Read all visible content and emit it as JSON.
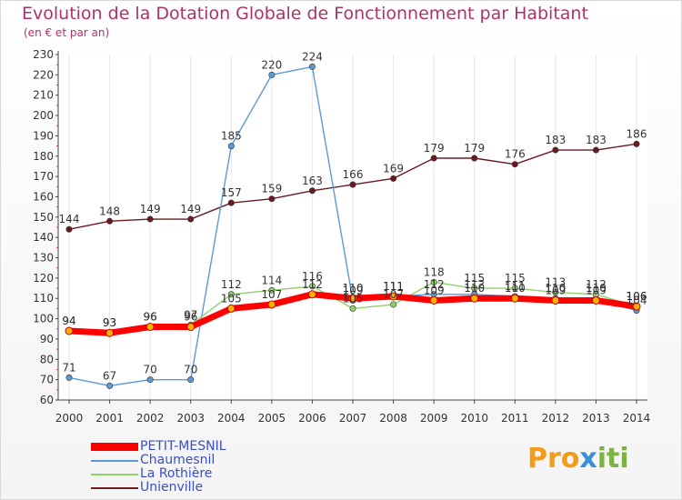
{
  "header": {
    "title": "Evolution de la Dotation Globale de Fonctionnement par Habitant",
    "subtitle": "(en € et par an)"
  },
  "logo": {
    "part1": "Pro",
    "part2": "x",
    "part3": "iti"
  },
  "chart_data": {
    "type": "line",
    "title": "Evolution de la Dotation Globale de Fonctionnement par Habitant",
    "subtitle": "(en € et par an)",
    "xlabel": "",
    "ylabel": "",
    "ylim": [
      60,
      230
    ],
    "yticks": [
      60,
      70,
      80,
      90,
      100,
      110,
      120,
      130,
      140,
      150,
      160,
      170,
      180,
      190,
      200,
      210,
      220,
      230
    ],
    "x": [
      "2000",
      "2001",
      "2002",
      "2003",
      "2004",
      "2005",
      "2006",
      "2007",
      "2008",
      "2009",
      "2010",
      "2011",
      "2012",
      "2013",
      "2014"
    ],
    "grid": "vertical",
    "legend_position": "bottom-left",
    "series": [
      {
        "name": "Unienville",
        "color": "#6b1a22",
        "values": [
          144,
          148,
          149,
          149,
          157,
          159,
          163,
          166,
          169,
          179,
          179,
          176,
          183,
          183,
          186
        ]
      },
      {
        "name": "Chaumesnil",
        "color": "#5b9bd5",
        "values": [
          71,
          67,
          70,
          70,
          185,
          220,
          224,
          109,
          111,
          112,
          112,
          111,
          110,
          110,
          104
        ]
      },
      {
        "name": "La Rothière",
        "color": "#8fd16a",
        "values": [
          94,
          93,
          96,
          97,
          112,
          114,
          116,
          105,
          107,
          118,
          115,
          115,
          113,
          112,
          106
        ]
      },
      {
        "name": "PETIT-MESNIL",
        "color": "#ff0000",
        "values": [
          94,
          93,
          96,
          96,
          105,
          107,
          112,
          110,
          111,
          109,
          110,
          110,
          109,
          109,
          106
        ]
      }
    ],
    "legend_order": [
      "PETIT-MESNIL",
      "Chaumesnil",
      "La Rothière",
      "Unienville"
    ]
  }
}
